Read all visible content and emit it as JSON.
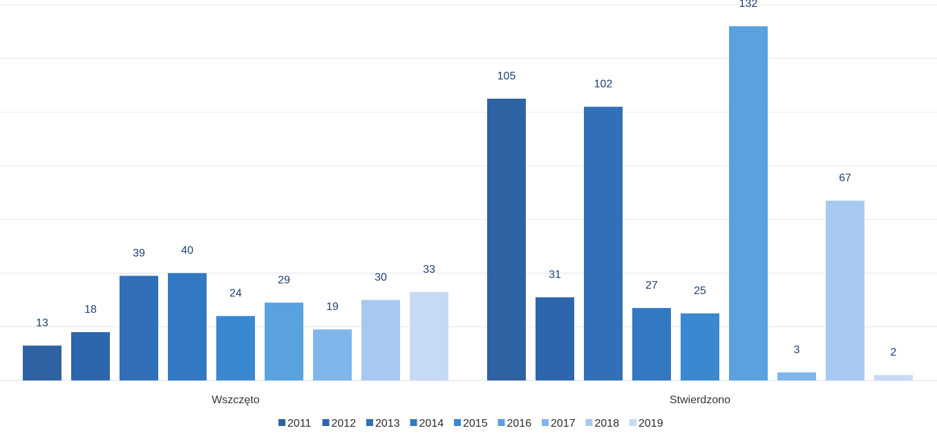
{
  "chart_data": {
    "type": "bar",
    "title": "",
    "xlabel": "",
    "ylabel": "",
    "ylim": [
      0,
      140
    ],
    "grid": true,
    "legend_position": "bottom",
    "categories": [
      "Wszczęto",
      "Stwierdzono"
    ],
    "series": [
      {
        "name": "2011",
        "values": [
          13,
          105
        ],
        "color": "#2f62a3"
      },
      {
        "name": "2012",
        "values": [
          18,
          31
        ],
        "color": "#2d66ad"
      },
      {
        "name": "2013",
        "values": [
          39,
          102
        ],
        "color": "#3170b8"
      },
      {
        "name": "2014",
        "values": [
          40,
          27
        ],
        "color": "#3378c2"
      },
      {
        "name": "2015",
        "values": [
          24,
          25
        ],
        "color": "#3a88d0"
      },
      {
        "name": "2016",
        "values": [
          29,
          132
        ],
        "color": "#5aa1e0"
      },
      {
        "name": "2017",
        "values": [
          19,
          3
        ],
        "color": "#7fb6ec"
      },
      {
        "name": "2018",
        "values": [
          30,
          67
        ],
        "color": "#a7c8f0"
      },
      {
        "name": "2019",
        "values": [
          33,
          2
        ],
        "color": "#c6daf5"
      }
    ]
  }
}
